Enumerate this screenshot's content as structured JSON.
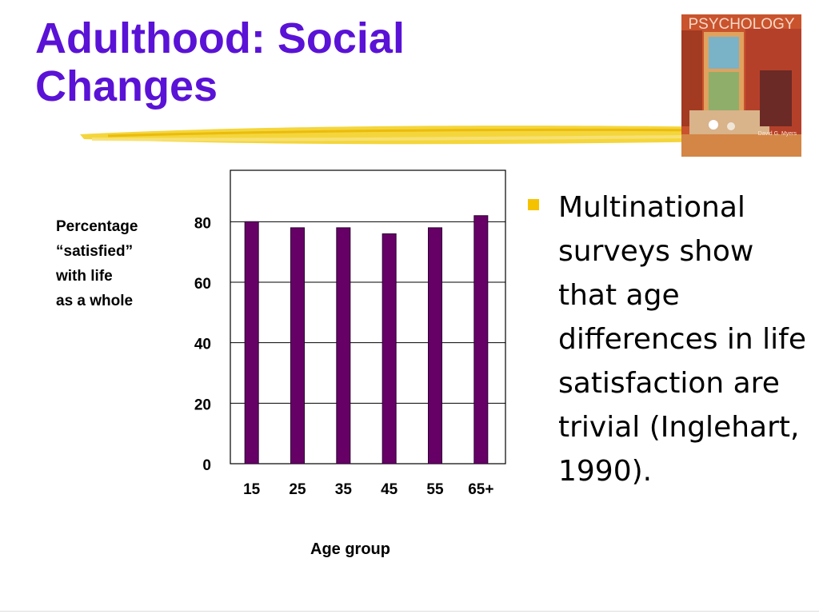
{
  "slide": {
    "title_line1": "Adulthood: Social",
    "title_line2": "Changes",
    "book": {
      "title": "PSYCHOLOGY",
      "author": "David G. Myers",
      "icon": "book-cover-image"
    },
    "bullets": [
      {
        "text": "Multinational surveys show that age differences in life satisfaction are trivial (Inglehart, 1990)."
      }
    ],
    "colors": {
      "title": "#5a12d6",
      "bar": "#660066",
      "bullet": "#f5c200",
      "swoosh": "#f2cf1a"
    }
  },
  "chart_data": {
    "type": "bar",
    "categories": [
      "15",
      "25",
      "35",
      "45",
      "55",
      "65+"
    ],
    "values": [
      80,
      78,
      78,
      76,
      78,
      82
    ],
    "ylabel_lines": [
      "Percentage",
      "“satisfied”",
      "with life",
      "as a whole"
    ],
    "xlabel": "Age group",
    "ylim": [
      0,
      97
    ],
    "yticks": [
      0,
      20,
      40,
      60,
      80
    ],
    "grid": true,
    "legend": "none"
  }
}
